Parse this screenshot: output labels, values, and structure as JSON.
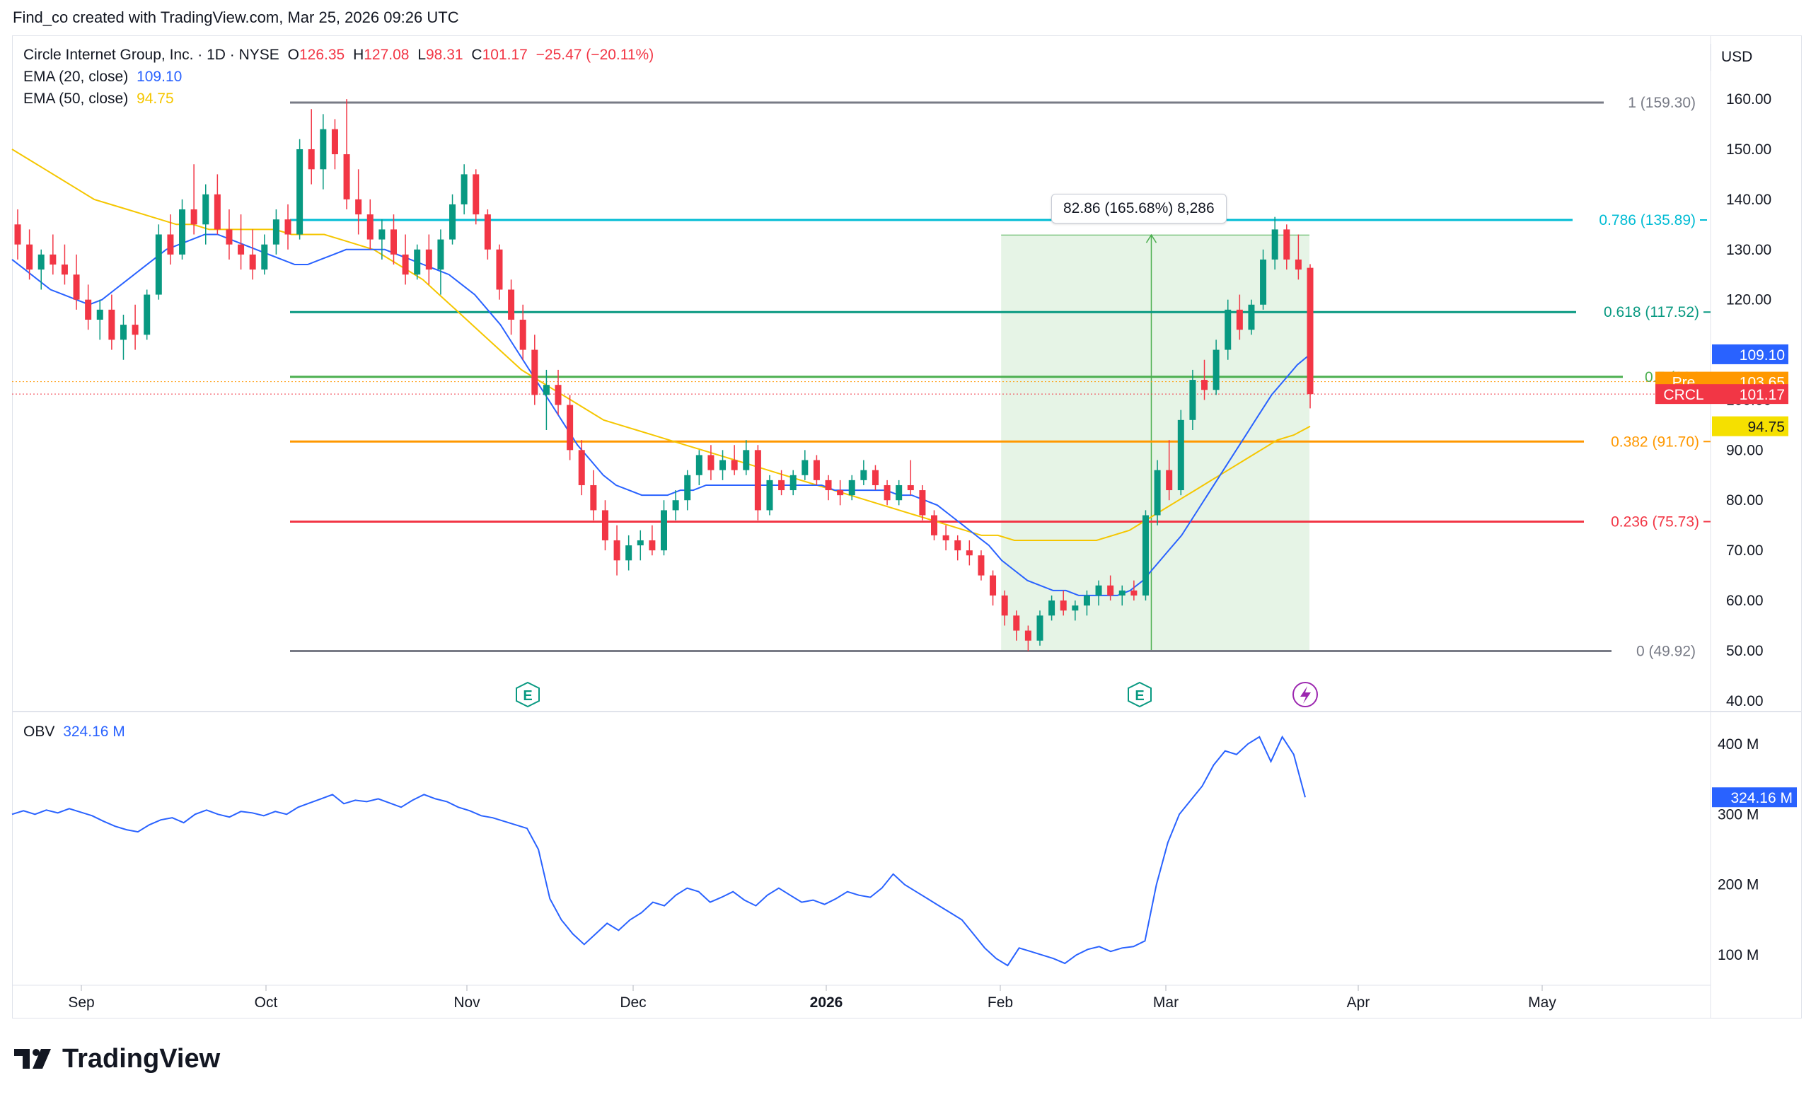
{
  "header": {
    "credit": "Find_co created with TradingView.com, Mar 25, 2026 09:26 UTC"
  },
  "legend": {
    "symbol": "Circle Internet Group, Inc. · 1D · NYSE",
    "open_label": "O",
    "open": "126.35",
    "high_label": "H",
    "high": "127.08",
    "low_label": "L",
    "low": "98.31",
    "close_label": "C",
    "close": "101.17",
    "change": "−25.47 (−20.11%)",
    "ema20_label": "EMA (20, close)",
    "ema20": "109.10",
    "ema50_label": "EMA (50, close)",
    "ema50": "94.75",
    "obv_label": "OBV",
    "obv": "324.16 M"
  },
  "currency": "USD",
  "measure": {
    "label": "82.86 (165.68%) 8,286"
  },
  "colors": {
    "up": "#089981",
    "down": "#f23645",
    "ema20": "#2962ff",
    "ema50": "#f5c600",
    "obv": "#2962ff"
  },
  "chart_data": [
    {
      "type": "candlestick",
      "title": "Circle Internet Group, Inc. · 1D · NYSE",
      "ylabel": "USD",
      "ylim": [
        38,
        172
      ],
      "price_axis_ticks": [
        "160.00",
        "150.00",
        "140.00",
        "130.00",
        "120.00",
        "110.00",
        "100.00",
        "90.00",
        "80.00",
        "70.00",
        "60.00",
        "50.00",
        "40.00"
      ],
      "time_axis_ticks": [
        "Sep",
        "Oct",
        "Nov",
        "Dec",
        "2026",
        "Feb",
        "Mar",
        "Apr",
        "May"
      ],
      "last_values": {
        "ema20": "109.10",
        "pre": "103.65",
        "crcl": "101.17",
        "ema50": "94.75"
      },
      "price_labels": {
        "pre": "Pre",
        "crcl": "CRCL"
      },
      "fib_levels": [
        {
          "ratio": 1,
          "price": 159.3,
          "label": "1 (159.30)",
          "color": "#787b86"
        },
        {
          "ratio": 0.786,
          "price": 135.89,
          "label": "0.786 (135.89)",
          "color": "#00bcd4"
        },
        {
          "ratio": 0.618,
          "price": 117.52,
          "label": "0.618 (117.52)",
          "color": "#089981"
        },
        {
          "ratio": 0.5,
          "price": 104.61,
          "label": "0.5 (104",
          "color": "#4caf50"
        },
        {
          "ratio": 0.382,
          "price": 91.7,
          "label": "0.382 (91.70)",
          "color": "#ff9800"
        },
        {
          "ratio": 0.236,
          "price": 75.73,
          "label": "0.236 (75.73)",
          "color": "#f23645"
        },
        {
          "ratio": 0,
          "price": 49.92,
          "label": "0 (49.92)",
          "color": "#787b86"
        }
      ],
      "earnings_markers": [
        "E",
        "E"
      ],
      "candles": [
        {
          "o": 135,
          "h": 138,
          "l": 128,
          "c": 131
        },
        {
          "o": 131,
          "h": 134,
          "l": 124,
          "c": 126
        },
        {
          "o": 126,
          "h": 130,
          "l": 122,
          "c": 129
        },
        {
          "o": 129,
          "h": 133,
          "l": 125,
          "c": 127
        },
        {
          "o": 127,
          "h": 131,
          "l": 123,
          "c": 125
        },
        {
          "o": 125,
          "h": 129,
          "l": 118,
          "c": 120
        },
        {
          "o": 120,
          "h": 123,
          "l": 114,
          "c": 116
        },
        {
          "o": 116,
          "h": 120,
          "l": 112,
          "c": 118
        },
        {
          "o": 118,
          "h": 121,
          "l": 110,
          "c": 112
        },
        {
          "o": 112,
          "h": 117,
          "l": 108,
          "c": 115
        },
        {
          "o": 115,
          "h": 119,
          "l": 110,
          "c": 113
        },
        {
          "o": 113,
          "h": 122,
          "l": 112,
          "c": 121
        },
        {
          "o": 121,
          "h": 135,
          "l": 120,
          "c": 133
        },
        {
          "o": 133,
          "h": 137,
          "l": 127,
          "c": 129
        },
        {
          "o": 129,
          "h": 140,
          "l": 128,
          "c": 138
        },
        {
          "o": 138,
          "h": 147,
          "l": 133,
          "c": 135
        },
        {
          "o": 135,
          "h": 143,
          "l": 131,
          "c": 141
        },
        {
          "o": 141,
          "h": 145,
          "l": 133,
          "c": 134
        },
        {
          "o": 134,
          "h": 138,
          "l": 128,
          "c": 131
        },
        {
          "o": 131,
          "h": 137,
          "l": 126,
          "c": 129
        },
        {
          "o": 129,
          "h": 134,
          "l": 124,
          "c": 126
        },
        {
          "o": 126,
          "h": 133,
          "l": 125,
          "c": 131
        },
        {
          "o": 131,
          "h": 138,
          "l": 129,
          "c": 136
        },
        {
          "o": 136,
          "h": 139,
          "l": 130,
          "c": 133
        },
        {
          "o": 133,
          "h": 152,
          "l": 132,
          "c": 150
        },
        {
          "o": 150,
          "h": 158,
          "l": 143,
          "c": 146
        },
        {
          "o": 146,
          "h": 157,
          "l": 142,
          "c": 154
        },
        {
          "o": 154,
          "h": 156,
          "l": 146,
          "c": 149
        },
        {
          "o": 149,
          "h": 160,
          "l": 138,
          "c": 140
        },
        {
          "o": 140,
          "h": 146,
          "l": 133,
          "c": 137
        },
        {
          "o": 137,
          "h": 140,
          "l": 130,
          "c": 132
        },
        {
          "o": 132,
          "h": 136,
          "l": 128,
          "c": 134
        },
        {
          "o": 134,
          "h": 137,
          "l": 127,
          "c": 129
        },
        {
          "o": 129,
          "h": 133,
          "l": 123,
          "c": 125
        },
        {
          "o": 125,
          "h": 131,
          "l": 124,
          "c": 130
        },
        {
          "o": 130,
          "h": 133,
          "l": 123,
          "c": 126
        },
        {
          "o": 126,
          "h": 134,
          "l": 121,
          "c": 132
        },
        {
          "o": 132,
          "h": 141,
          "l": 131,
          "c": 139
        },
        {
          "o": 139,
          "h": 147,
          "l": 137,
          "c": 145
        },
        {
          "o": 145,
          "h": 146,
          "l": 135,
          "c": 137
        },
        {
          "o": 137,
          "h": 138,
          "l": 128,
          "c": 130
        },
        {
          "o": 130,
          "h": 131,
          "l": 120,
          "c": 122
        },
        {
          "o": 122,
          "h": 124,
          "l": 113,
          "c": 116
        },
        {
          "o": 116,
          "h": 119,
          "l": 108,
          "c": 110
        },
        {
          "o": 110,
          "h": 113,
          "l": 99,
          "c": 101
        },
        {
          "o": 101,
          "h": 106,
          "l": 94,
          "c": 103
        },
        {
          "o": 103,
          "h": 106,
          "l": 97,
          "c": 99
        },
        {
          "o": 99,
          "h": 101,
          "l": 88,
          "c": 90
        },
        {
          "o": 90,
          "h": 92,
          "l": 81,
          "c": 83
        },
        {
          "o": 83,
          "h": 86,
          "l": 76,
          "c": 78
        },
        {
          "o": 78,
          "h": 80,
          "l": 70,
          "c": 72
        },
        {
          "o": 72,
          "h": 75,
          "l": 65,
          "c": 68
        },
        {
          "o": 68,
          "h": 73,
          "l": 66,
          "c": 71
        },
        {
          "o": 71,
          "h": 74,
          "l": 68,
          "c": 72
        },
        {
          "o": 72,
          "h": 75,
          "l": 69,
          "c": 70
        },
        {
          "o": 70,
          "h": 80,
          "l": 69,
          "c": 78
        },
        {
          "o": 78,
          "h": 82,
          "l": 76,
          "c": 80
        },
        {
          "o": 80,
          "h": 86,
          "l": 78,
          "c": 85
        },
        {
          "o": 85,
          "h": 90,
          "l": 83,
          "c": 89
        },
        {
          "o": 89,
          "h": 91,
          "l": 84,
          "c": 86
        },
        {
          "o": 86,
          "h": 90,
          "l": 84,
          "c": 88
        },
        {
          "o": 88,
          "h": 91,
          "l": 85,
          "c": 86
        },
        {
          "o": 86,
          "h": 92,
          "l": 85,
          "c": 90
        },
        {
          "o": 90,
          "h": 91,
          "l": 76,
          "c": 78
        },
        {
          "o": 78,
          "h": 85,
          "l": 77,
          "c": 84
        },
        {
          "o": 84,
          "h": 86,
          "l": 81,
          "c": 82
        },
        {
          "o": 82,
          "h": 86,
          "l": 81,
          "c": 85
        },
        {
          "o": 85,
          "h": 90,
          "l": 84,
          "c": 88
        },
        {
          "o": 88,
          "h": 89,
          "l": 83,
          "c": 84
        },
        {
          "o": 84,
          "h": 85,
          "l": 80,
          "c": 82
        },
        {
          "o": 82,
          "h": 84,
          "l": 79,
          "c": 81
        },
        {
          "o": 81,
          "h": 85,
          "l": 80,
          "c": 84
        },
        {
          "o": 84,
          "h": 88,
          "l": 83,
          "c": 86
        },
        {
          "o": 86,
          "h": 87,
          "l": 82,
          "c": 83
        },
        {
          "o": 83,
          "h": 84,
          "l": 79,
          "c": 80
        },
        {
          "o": 80,
          "h": 84,
          "l": 79,
          "c": 83
        },
        {
          "o": 83,
          "h": 88,
          "l": 81,
          "c": 82
        },
        {
          "o": 82,
          "h": 83,
          "l": 76,
          "c": 77
        },
        {
          "o": 77,
          "h": 78,
          "l": 72,
          "c": 73
        },
        {
          "o": 73,
          "h": 75,
          "l": 70,
          "c": 72
        },
        {
          "o": 72,
          "h": 73,
          "l": 68,
          "c": 70
        },
        {
          "o": 70,
          "h": 72,
          "l": 67,
          "c": 69
        },
        {
          "o": 69,
          "h": 70,
          "l": 64,
          "c": 65
        },
        {
          "o": 65,
          "h": 66,
          "l": 59,
          "c": 61
        },
        {
          "o": 61,
          "h": 62,
          "l": 55,
          "c": 57
        },
        {
          "o": 57,
          "h": 58,
          "l": 52,
          "c": 54
        },
        {
          "o": 54,
          "h": 55,
          "l": 49.9,
          "c": 52
        },
        {
          "o": 52,
          "h": 58,
          "l": 51,
          "c": 57
        },
        {
          "o": 57,
          "h": 61,
          "l": 56,
          "c": 60
        },
        {
          "o": 60,
          "h": 62,
          "l": 57,
          "c": 58
        },
        {
          "o": 58,
          "h": 60,
          "l": 56,
          "c": 59
        },
        {
          "o": 59,
          "h": 62,
          "l": 57,
          "c": 61
        },
        {
          "o": 61,
          "h": 64,
          "l": 59,
          "c": 63
        },
        {
          "o": 63,
          "h": 65,
          "l": 60,
          "c": 61
        },
        {
          "o": 61,
          "h": 63,
          "l": 59,
          "c": 62
        },
        {
          "o": 62,
          "h": 64,
          "l": 60,
          "c": 61
        },
        {
          "o": 61,
          "h": 78,
          "l": 60,
          "c": 77
        },
        {
          "o": 77,
          "h": 88,
          "l": 75,
          "c": 86
        },
        {
          "o": 86,
          "h": 92,
          "l": 80,
          "c": 82
        },
        {
          "o": 82,
          "h": 98,
          "l": 81,
          "c": 96
        },
        {
          "o": 96,
          "h": 106,
          "l": 94,
          "c": 104
        },
        {
          "o": 104,
          "h": 108,
          "l": 100,
          "c": 102
        },
        {
          "o": 102,
          "h": 112,
          "l": 101,
          "c": 110
        },
        {
          "o": 110,
          "h": 120,
          "l": 108,
          "c": 118
        },
        {
          "o": 118,
          "h": 121,
          "l": 112,
          "c": 114
        },
        {
          "o": 114,
          "h": 120,
          "l": 113,
          "c": 119
        },
        {
          "o": 119,
          "h": 130,
          "l": 118,
          "c": 128
        },
        {
          "o": 128,
          "h": 136.5,
          "l": 126,
          "c": 134
        },
        {
          "o": 134,
          "h": 135,
          "l": 126,
          "c": 128
        },
        {
          "o": 128,
          "h": 133,
          "l": 124,
          "c": 126
        },
        {
          "o": 126.35,
          "h": 127.08,
          "l": 98.31,
          "c": 101.17
        }
      ],
      "ema20": [
        128,
        126,
        124,
        122,
        121,
        120,
        119,
        120,
        122,
        124,
        126,
        128,
        130,
        131,
        132,
        133,
        133,
        132,
        131,
        130,
        129,
        128,
        127,
        127,
        128,
        129,
        130,
        130,
        130,
        130,
        129,
        128,
        127,
        126,
        125,
        123,
        121,
        118,
        115,
        111,
        107,
        103,
        99,
        95,
        91,
        88,
        85,
        83,
        82,
        81,
        81,
        81,
        82,
        82,
        83,
        83,
        83,
        83,
        83,
        83,
        83,
        83,
        83,
        83,
        82,
        82,
        82,
        82,
        82,
        81,
        81,
        80,
        79,
        77,
        75,
        73,
        71,
        68,
        66,
        64,
        63,
        62,
        62,
        61,
        61,
        61,
        61,
        62,
        64,
        67,
        70,
        73,
        77,
        81,
        85,
        89,
        93,
        97,
        101,
        104,
        107,
        109.1
      ],
      "ema50": [
        150,
        148,
        146,
        144,
        142,
        140,
        139,
        138,
        137,
        136,
        135,
        135,
        134,
        134,
        134,
        134,
        134,
        133,
        133,
        133,
        132,
        131,
        130,
        128,
        126,
        124,
        121,
        118,
        115,
        112,
        109,
        106,
        104,
        102,
        100,
        98,
        96,
        95,
        94,
        93,
        92,
        91,
        90,
        89,
        88,
        87,
        86,
        85,
        84,
        83,
        82,
        81,
        80,
        79,
        78,
        77,
        76,
        75,
        74,
        73,
        73,
        72,
        72,
        72,
        72,
        72,
        72,
        73,
        74,
        76,
        78,
        80,
        82,
        84,
        86,
        88,
        90,
        92,
        93,
        94.75
      ]
    },
    {
      "type": "line",
      "title": "OBV",
      "series": [
        {
          "name": "OBV",
          "values": [
            300,
            305,
            300,
            306,
            302,
            308,
            303,
            298,
            290,
            283,
            278,
            275,
            285,
            292,
            295,
            288,
            300,
            306,
            300,
            296,
            304,
            302,
            298,
            304,
            300,
            310,
            316,
            322,
            328,
            315,
            320,
            318,
            322,
            316,
            310,
            320,
            328,
            322,
            318,
            310,
            305,
            298,
            295,
            290,
            285,
            280,
            250,
            180,
            150,
            130,
            115,
            130,
            145,
            135,
            150,
            160,
            175,
            170,
            185,
            195,
            190,
            175,
            182,
            190,
            178,
            170,
            185,
            195,
            185,
            175,
            178,
            172,
            180,
            190,
            185,
            182,
            195,
            215,
            200,
            190,
            180,
            170,
            160,
            150,
            130,
            110,
            95,
            85,
            110,
            105,
            100,
            95,
            88,
            100,
            108,
            112,
            105,
            110,
            112,
            120,
            200,
            260,
            300,
            320,
            340,
            370,
            390,
            385,
            400,
            410,
            375,
            410,
            385,
            324.16
          ]
        }
      ],
      "axis_ticks": [
        "400 M",
        "300 M",
        "200 M",
        "100 M"
      ],
      "ylim": [
        60,
        440
      ],
      "last_value": "324.16 M"
    }
  ],
  "footer": {
    "brand": "TradingView"
  }
}
